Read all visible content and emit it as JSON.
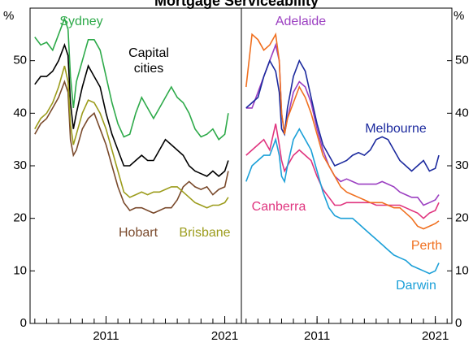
{
  "title": "Mortgage Serviceability",
  "chart_data": [
    {
      "type": "line",
      "y_label": "%",
      "xlim": [
        2004.6,
        2022.4
      ],
      "ylim": [
        0,
        60
      ],
      "xticks": [
        2011,
        2021
      ],
      "x_minor_ticks": [
        2005,
        2006,
        2007,
        2008,
        2009,
        2010,
        2011,
        2012,
        2013,
        2014,
        2015,
        2016,
        2017,
        2018,
        2019,
        2020,
        2021,
        2022
      ],
      "yticks": [
        0,
        10,
        20,
        30,
        40,
        50
      ],
      "x": [
        2005,
        2005.5,
        2006,
        2006.5,
        2007,
        2007.5,
        2007.8,
        2008,
        2008.25,
        2008.5,
        2009,
        2009.5,
        2010,
        2010.5,
        2011,
        2011.5,
        2012,
        2012.5,
        2013,
        2013.5,
        2014,
        2014.5,
        2015,
        2015.5,
        2016,
        2016.5,
        2017,
        2017.5,
        2018,
        2018.5,
        2019,
        2019.5,
        2020,
        2020.5,
        2021,
        2021.3
      ],
      "series": [
        {
          "name": "Sydney",
          "color": "#2eaa4a",
          "values": [
            54.5,
            53,
            53.5,
            52,
            55,
            58,
            56,
            47,
            41,
            46,
            50,
            54,
            54,
            52,
            47,
            42,
            38,
            35.5,
            36,
            40,
            43,
            41,
            39,
            41,
            43,
            45,
            43,
            42,
            40,
            37,
            35.5,
            36,
            37,
            35,
            36,
            40
          ]
        },
        {
          "name": "Capital cities",
          "color": "#000000",
          "values": [
            45.5,
            47,
            47,
            48,
            50,
            53,
            51,
            42,
            37,
            40,
            45,
            49,
            47,
            45,
            40,
            36,
            33,
            30,
            30,
            31,
            32,
            31,
            31,
            33,
            35,
            34,
            33,
            32,
            30,
            29,
            28.5,
            28,
            29,
            28,
            29,
            31
          ]
        },
        {
          "name": "Hobart",
          "color": "#7a4a2c",
          "values": [
            36,
            38,
            39,
            41,
            43,
            46,
            44,
            35,
            32,
            33,
            37,
            39,
            40,
            37,
            34,
            30,
            26,
            23,
            21.5,
            22,
            22,
            21.5,
            21,
            21.5,
            22,
            22,
            23.5,
            26,
            27,
            26,
            25.5,
            26,
            24.5,
            25.5,
            26,
            29
          ]
        },
        {
          "name": "Brisbane",
          "color": "#9c9c1c",
          "values": [
            37,
            39,
            40,
            42,
            45,
            49,
            46,
            38,
            34,
            36,
            40,
            42.5,
            42,
            40,
            37,
            33,
            29,
            25,
            24,
            24.5,
            25,
            24.5,
            25,
            25,
            25.5,
            26,
            26,
            25,
            24,
            23,
            22.5,
            22,
            22.5,
            22.5,
            23,
            24
          ]
        }
      ]
    },
    {
      "type": "line",
      "y_label": "%",
      "xlim": [
        2004.6,
        2022.4
      ],
      "ylim": [
        0,
        60
      ],
      "xticks": [
        2011,
        2021
      ],
      "x_minor_ticks": [
        2005,
        2006,
        2007,
        2008,
        2009,
        2010,
        2011,
        2012,
        2013,
        2014,
        2015,
        2016,
        2017,
        2018,
        2019,
        2020,
        2021,
        2022
      ],
      "yticks": [
        0,
        10,
        20,
        30,
        40,
        50
      ],
      "x": [
        2005,
        2005.5,
        2006,
        2006.5,
        2007,
        2007.5,
        2007.8,
        2008,
        2008.25,
        2008.5,
        2009,
        2009.5,
        2010,
        2010.5,
        2011,
        2011.5,
        2012,
        2012.5,
        2013,
        2013.5,
        2014,
        2014.5,
        2015,
        2015.5,
        2016,
        2016.5,
        2017,
        2017.5,
        2018,
        2018.5,
        2019,
        2019.5,
        2020,
        2020.5,
        2021,
        2021.3
      ],
      "series": [
        {
          "name": "Adelaide",
          "color": "#9b3fc1",
          "values": [
            41,
            41,
            44,
            47,
            50,
            53,
            50,
            40,
            36,
            39,
            44,
            46,
            45,
            42,
            37,
            33,
            30,
            28,
            27,
            27.5,
            27,
            26.5,
            26.5,
            26.5,
            26.5,
            27,
            26.5,
            26,
            25,
            24.5,
            24,
            24,
            22.5,
            23,
            23.5,
            24.5
          ]
        },
        {
          "name": "Melbourne",
          "color": "#1c2a9e",
          "values": [
            41,
            42,
            43,
            47,
            50,
            48,
            44,
            37,
            36,
            41,
            47,
            50,
            48,
            43,
            38,
            34,
            32,
            30,
            30.5,
            31,
            32,
            32.5,
            32,
            33,
            35,
            35.5,
            35,
            33,
            31,
            30,
            29,
            30,
            31,
            29,
            29.5,
            32
          ]
        },
        {
          "name": "Canberra",
          "color": "#e0357f",
          "values": [
            32,
            33,
            34,
            35,
            33,
            38,
            34,
            31,
            29,
            30,
            32,
            33,
            32,
            31,
            28,
            25.5,
            24,
            22.5,
            22.5,
            23,
            23,
            23,
            23,
            23,
            22.5,
            22.5,
            22.5,
            22.5,
            22.5,
            22,
            21.5,
            21,
            20,
            21,
            21.5,
            23
          ]
        },
        {
          "name": "Perth",
          "color": "#f07020",
          "values": [
            45,
            55,
            54,
            52,
            53,
            55,
            50,
            40,
            36,
            39,
            42,
            45,
            43,
            40,
            36,
            32,
            30,
            28,
            26,
            25,
            24.5,
            24,
            23.5,
            23,
            23,
            23,
            22.5,
            22,
            22,
            21,
            20,
            18.5,
            18,
            18.5,
            19,
            19.5
          ]
        },
        {
          "name": "Darwin",
          "color": "#1ca0d8",
          "values": [
            27,
            30,
            31,
            32,
            32,
            35,
            32,
            28,
            27,
            30,
            35,
            37,
            35,
            33,
            29,
            25,
            22,
            20.5,
            20,
            20,
            20,
            19,
            18,
            17,
            16,
            15,
            14,
            13,
            12.5,
            12,
            11,
            10.5,
            10,
            9.5,
            10,
            11.5
          ]
        }
      ]
    }
  ]
}
